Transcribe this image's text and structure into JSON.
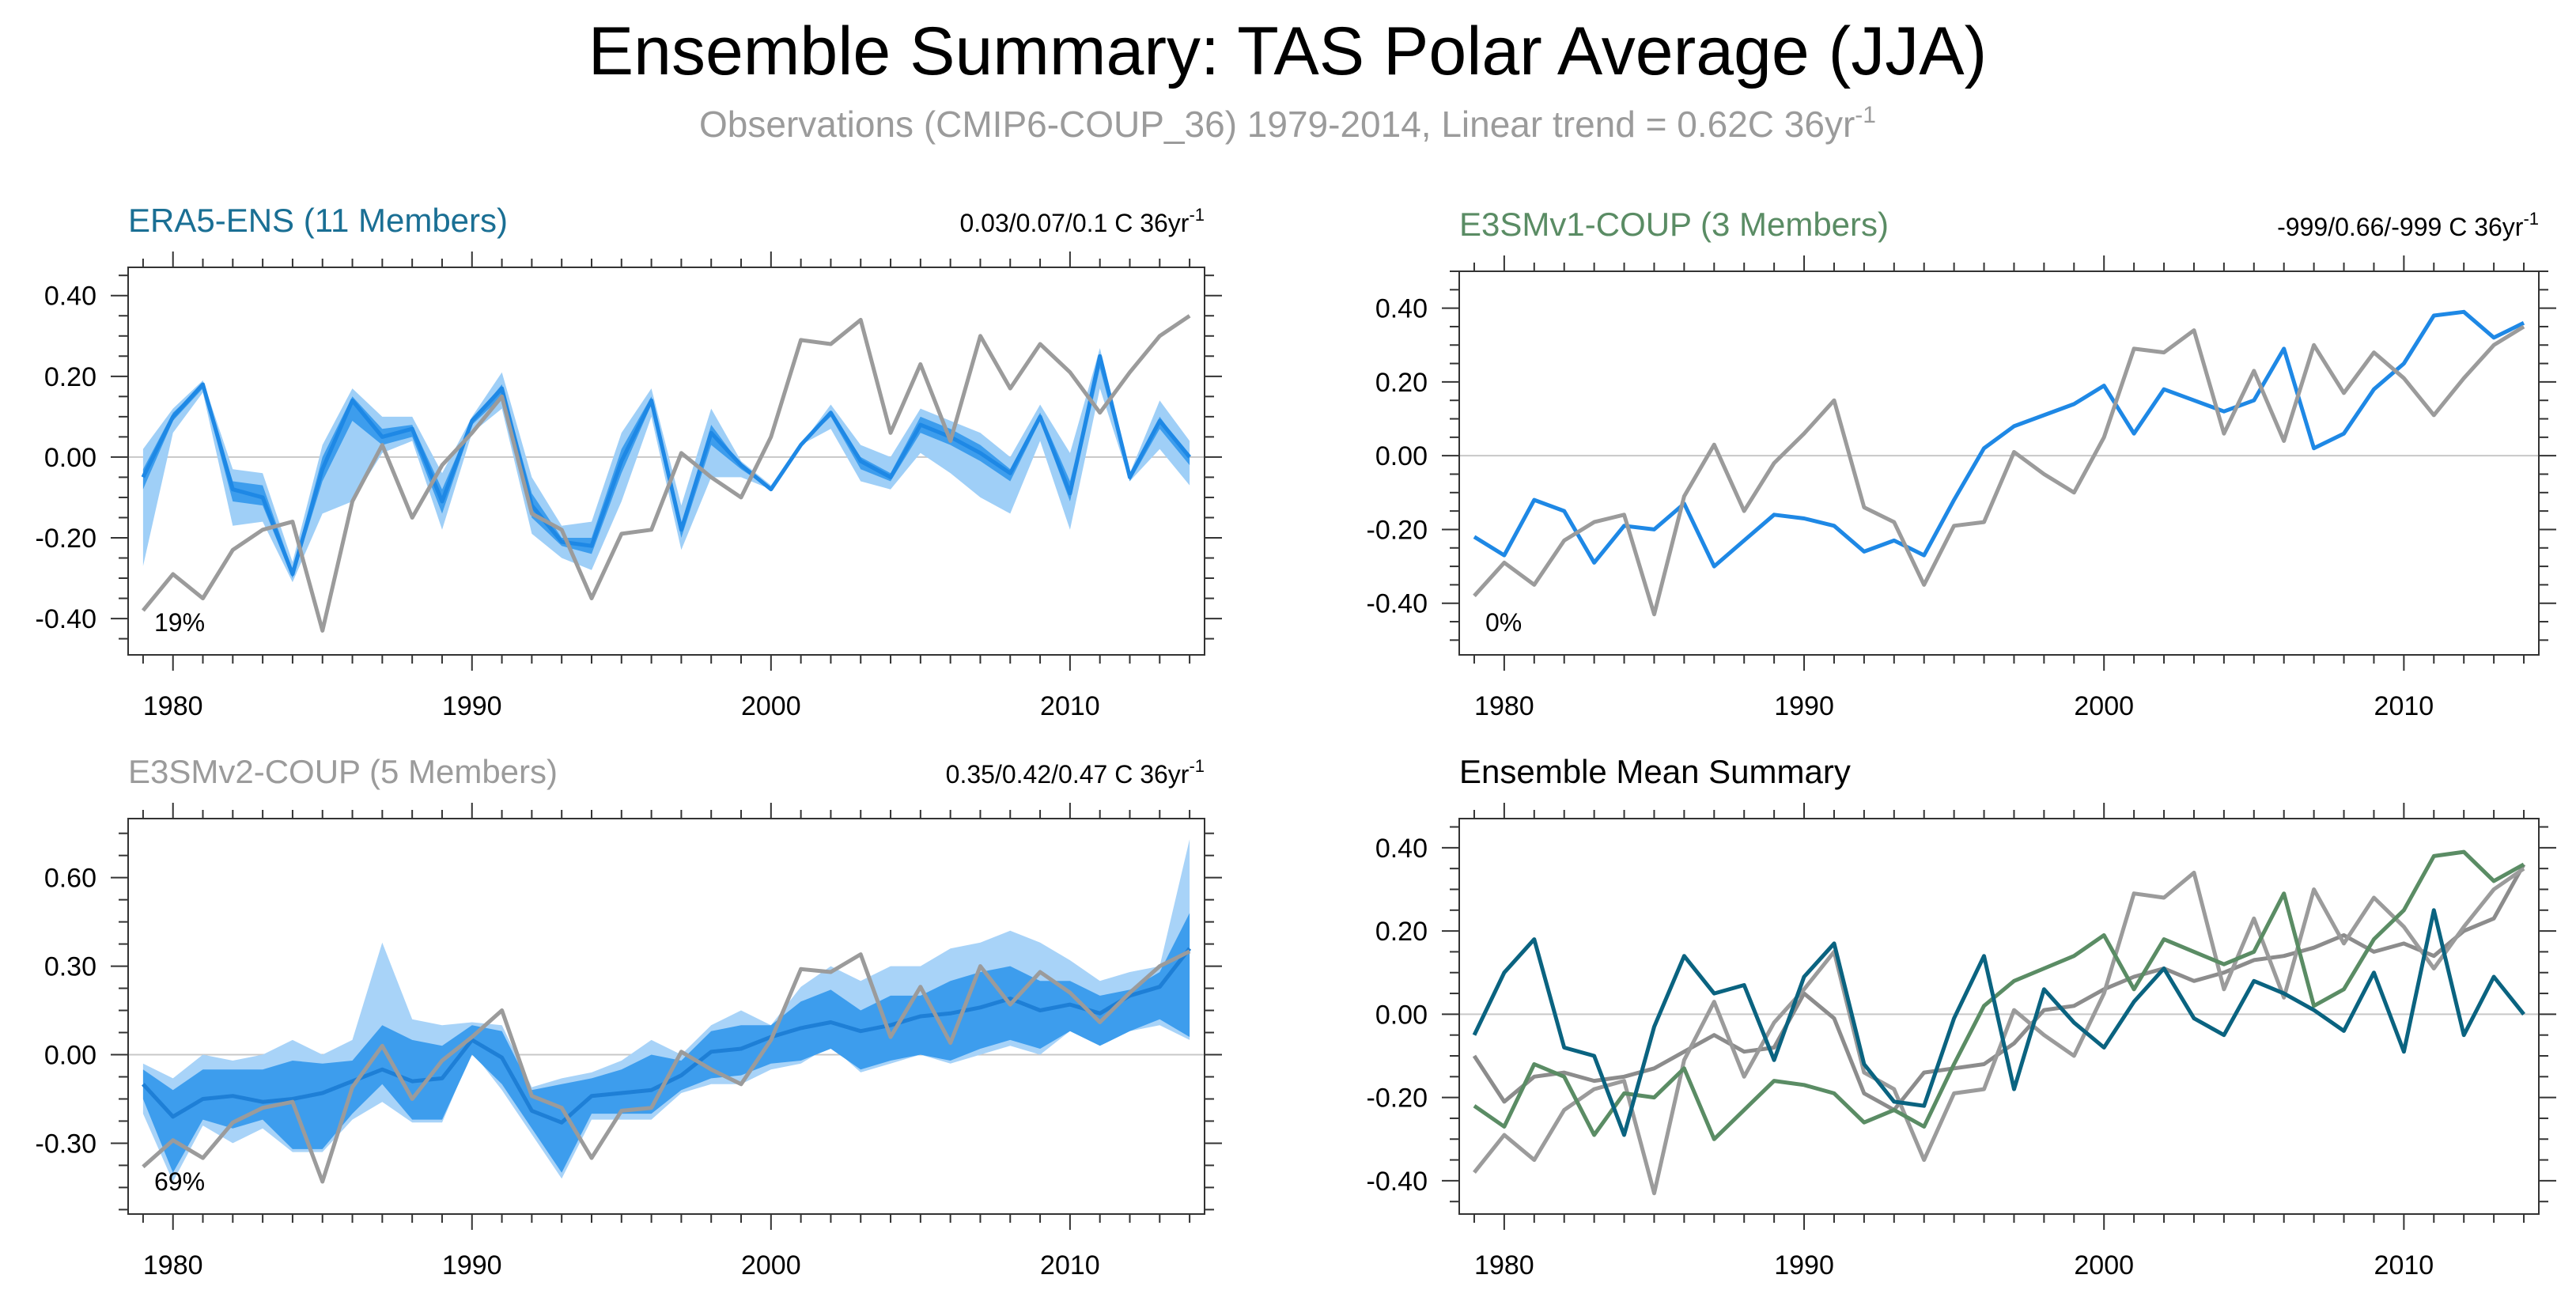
{
  "title": "Ensemble Summary: TAS Polar Average (JJA)",
  "subtitle": "Observations (CMIP6-COUP_36) 1979-2014, Linear trend = 0.62C 36yr",
  "subtitle_sup": "-1",
  "colors": {
    "obs": "#9b9b9b",
    "era5_band_outer": "#9fcff7",
    "era5_band_inner": "#3d9ded",
    "era5_line": "#1e88e5",
    "e3smv1": "#5a8c64",
    "e3smv2_band_outer": "#a8d3f8",
    "e3smv2_band_inner": "#3d9ded",
    "e3smv2_line": "#1e7fd6",
    "mean_era5": "#0a6380",
    "mean_e3smv2": "#8c8c8c"
  },
  "chart_data": [
    {
      "type": "line",
      "panel": "era5",
      "title": "ERA5-ENS (11 Members)",
      "title_color": "#1a6f94",
      "trend_label": "0.03/0.07/0.1 C 36yr",
      "trend_sup": "-1",
      "percent_label": "19%",
      "x": [
        1979,
        1980,
        1981,
        1982,
        1983,
        1984,
        1985,
        1986,
        1987,
        1988,
        1989,
        1990,
        1991,
        1992,
        1993,
        1994,
        1995,
        1996,
        1997,
        1998,
        1999,
        2000,
        2001,
        2002,
        2003,
        2004,
        2005,
        2006,
        2007,
        2008,
        2009,
        2010,
        2011,
        2012,
        2013,
        2014
      ],
      "xticks": [
        1980,
        1990,
        2000,
        2010
      ],
      "yticks": [
        -0.4,
        -0.2,
        0.0,
        0.2,
        0.4
      ],
      "ylim": [
        -0.49,
        0.47
      ],
      "series": [
        {
          "role": "band_outer",
          "low": [
            -0.27,
            0.06,
            0.16,
            -0.17,
            -0.16,
            -0.31,
            -0.14,
            -0.11,
            0.01,
            0.04,
            -0.18,
            0.06,
            0.12,
            -0.19,
            -0.25,
            -0.28,
            -0.11,
            0.1,
            -0.23,
            -0.05,
            -0.05,
            -0.08,
            0.03,
            0.07,
            -0.06,
            -0.08,
            0.01,
            -0.04,
            -0.1,
            -0.14,
            0.04,
            -0.18,
            0.17,
            -0.06,
            0.02,
            -0.07
          ],
          "high": [
            0.02,
            0.12,
            0.19,
            -0.03,
            -0.04,
            -0.26,
            0.03,
            0.17,
            0.1,
            0.1,
            -0.04,
            0.1,
            0.21,
            -0.05,
            -0.17,
            -0.16,
            0.06,
            0.17,
            -0.12,
            0.12,
            -0.01,
            -0.07,
            0.03,
            0.13,
            0.03,
            0.0,
            0.12,
            0.09,
            0.06,
            0.0,
            0.13,
            0.01,
            0.27,
            -0.04,
            0.14,
            0.04
          ]
        },
        {
          "role": "band_inner",
          "low": [
            -0.08,
            0.09,
            0.17,
            -0.11,
            -0.12,
            -0.3,
            -0.06,
            0.09,
            0.03,
            0.05,
            -0.14,
            0.08,
            0.15,
            -0.15,
            -0.22,
            -0.24,
            -0.04,
            0.13,
            -0.2,
            0.03,
            -0.03,
            -0.08,
            0.03,
            0.1,
            -0.03,
            -0.06,
            0.06,
            0.03,
            -0.01,
            -0.06,
            0.09,
            -0.11,
            0.22,
            -0.06,
            0.07,
            -0.02
          ],
          "high": [
            -0.03,
            0.11,
            0.18,
            -0.06,
            -0.07,
            -0.28,
            0.0,
            0.15,
            0.07,
            0.08,
            -0.08,
            0.09,
            0.18,
            -0.09,
            -0.2,
            -0.2,
            0.02,
            0.15,
            -0.17,
            0.08,
            -0.02,
            -0.08,
            0.03,
            0.11,
            0.0,
            -0.04,
            0.1,
            0.07,
            0.03,
            -0.03,
            0.11,
            -0.06,
            0.25,
            -0.05,
            0.1,
            0.0
          ]
        },
        {
          "role": "mean",
          "values": [
            -0.05,
            0.1,
            0.18,
            -0.08,
            -0.1,
            -0.29,
            -0.03,
            0.14,
            0.05,
            0.07,
            -0.11,
            0.09,
            0.17,
            -0.12,
            -0.21,
            -0.22,
            -0.01,
            0.14,
            -0.18,
            0.06,
            -0.02,
            -0.08,
            0.03,
            0.11,
            -0.01,
            -0.05,
            0.08,
            0.05,
            0.01,
            -0.04,
            0.1,
            -0.09,
            0.25,
            -0.05,
            0.09,
            0.0
          ]
        },
        {
          "role": "obs",
          "values": [
            -0.38,
            -0.29,
            -0.35,
            -0.23,
            -0.18,
            -0.16,
            -0.43,
            -0.11,
            0.03,
            -0.15,
            -0.02,
            0.06,
            0.15,
            -0.14,
            -0.18,
            -0.35,
            -0.19,
            -0.18,
            0.01,
            -0.05,
            -0.1,
            0.05,
            0.29,
            0.28,
            0.34,
            0.06,
            0.23,
            0.04,
            0.3,
            0.17,
            0.28,
            0.21,
            0.11,
            0.21,
            0.3,
            0.35
          ]
        }
      ]
    },
    {
      "type": "line",
      "panel": "e3smv1",
      "title": "E3SMv1-COUP (3 Members)",
      "title_color": "#5a8c64",
      "trend_label": "-999/0.66/-999 C 36yr",
      "trend_sup": "-1",
      "percent_label": "0%",
      "x": [
        1979,
        1980,
        1981,
        1982,
        1983,
        1984,
        1985,
        1986,
        1987,
        1988,
        1989,
        1990,
        1991,
        1992,
        1993,
        1994,
        1995,
        1996,
        1997,
        1998,
        1999,
        2000,
        2001,
        2002,
        2003,
        2004,
        2005,
        2006,
        2007,
        2008,
        2009,
        2010,
        2011,
        2012,
        2013,
        2014
      ],
      "xticks": [
        1980,
        1990,
        2000,
        2010
      ],
      "yticks": [
        -0.4,
        -0.2,
        0.0,
        0.2,
        0.4
      ],
      "ylim": [
        -0.54,
        0.5
      ],
      "series": [
        {
          "role": "mean",
          "values": [
            -0.22,
            -0.27,
            -0.12,
            -0.15,
            -0.29,
            -0.19,
            -0.2,
            -0.13,
            -0.3,
            -0.23,
            -0.16,
            -0.17,
            -0.19,
            -0.26,
            -0.23,
            -0.27,
            -0.12,
            0.02,
            0.08,
            0.11,
            0.14,
            0.19,
            0.06,
            0.18,
            0.15,
            0.12,
            0.15,
            0.29,
            0.02,
            0.06,
            0.18,
            0.25,
            0.38,
            0.39,
            0.32,
            0.36
          ]
        },
        {
          "role": "obs",
          "values": [
            -0.38,
            -0.29,
            -0.35,
            -0.23,
            -0.18,
            -0.16,
            -0.43,
            -0.11,
            0.03,
            -0.15,
            -0.02,
            0.06,
            0.15,
            -0.14,
            -0.18,
            -0.35,
            -0.19,
            -0.18,
            0.01,
            -0.05,
            -0.1,
            0.05,
            0.29,
            0.28,
            0.34,
            0.06,
            0.23,
            0.04,
            0.3,
            0.17,
            0.28,
            0.21,
            0.11,
            0.21,
            0.3,
            0.35
          ]
        }
      ]
    },
    {
      "type": "line",
      "panel": "e3smv2",
      "title": "E3SMv2-COUP (5 Members)",
      "title_color": "#9b9b9b",
      "trend_label": "0.35/0.42/0.47 C 36yr",
      "trend_sup": "-1",
      "percent_label": "69%",
      "x": [
        1979,
        1980,
        1981,
        1982,
        1983,
        1984,
        1985,
        1986,
        1987,
        1988,
        1989,
        1990,
        1991,
        1992,
        1993,
        1994,
        1995,
        1996,
        1997,
        1998,
        1999,
        2000,
        2001,
        2002,
        2003,
        2004,
        2005,
        2006,
        2007,
        2008,
        2009,
        2010,
        2011,
        2012,
        2013,
        2014
      ],
      "xticks": [
        1980,
        1990,
        2000,
        2010
      ],
      "yticks": [
        -0.3,
        0.0,
        0.3,
        0.6
      ],
      "ylim": [
        -0.54,
        0.8
      ],
      "series": [
        {
          "role": "band_outer",
          "low": [
            -0.2,
            -0.43,
            -0.24,
            -0.3,
            -0.25,
            -0.33,
            -0.33,
            -0.22,
            -0.16,
            -0.23,
            -0.23,
            0.01,
            -0.12,
            -0.27,
            -0.42,
            -0.22,
            -0.22,
            -0.22,
            -0.13,
            -0.1,
            -0.1,
            -0.05,
            -0.03,
            0.03,
            -0.06,
            -0.03,
            0.0,
            -0.03,
            0.0,
            0.03,
            0.0,
            0.08,
            0.03,
            0.08,
            0.1,
            0.05
          ],
          "high": [
            -0.03,
            -0.08,
            0.0,
            -0.02,
            0.0,
            0.05,
            0.0,
            0.05,
            0.38,
            0.12,
            0.1,
            0.11,
            0.1,
            -0.11,
            -0.08,
            -0.06,
            -0.02,
            0.05,
            0.0,
            0.1,
            0.15,
            0.1,
            0.23,
            0.3,
            0.25,
            0.3,
            0.3,
            0.36,
            0.38,
            0.42,
            0.38,
            0.32,
            0.25,
            0.28,
            0.3,
            0.73
          ]
        },
        {
          "role": "band_inner",
          "low": [
            -0.15,
            -0.4,
            -0.22,
            -0.25,
            -0.22,
            -0.32,
            -0.32,
            -0.2,
            -0.1,
            -0.22,
            -0.22,
            0.0,
            -0.1,
            -0.25,
            -0.4,
            -0.2,
            -0.2,
            -0.2,
            -0.12,
            -0.08,
            -0.07,
            -0.03,
            -0.02,
            0.02,
            -0.05,
            -0.02,
            0.0,
            -0.02,
            0.02,
            0.05,
            0.02,
            0.08,
            0.03,
            0.08,
            0.12,
            0.06
          ],
          "high": [
            -0.05,
            -0.12,
            -0.05,
            -0.05,
            -0.05,
            -0.02,
            -0.03,
            -0.02,
            0.1,
            0.05,
            0.03,
            0.1,
            0.08,
            -0.12,
            -0.1,
            -0.08,
            -0.05,
            0.0,
            -0.02,
            0.08,
            0.1,
            0.1,
            0.18,
            0.22,
            0.15,
            0.2,
            0.2,
            0.25,
            0.28,
            0.3,
            0.25,
            0.25,
            0.2,
            0.22,
            0.28,
            0.48
          ]
        },
        {
          "role": "mean",
          "values": [
            -0.1,
            -0.21,
            -0.15,
            -0.14,
            -0.16,
            -0.15,
            -0.13,
            -0.09,
            -0.05,
            -0.09,
            -0.08,
            0.05,
            -0.01,
            -0.19,
            -0.23,
            -0.14,
            -0.13,
            -0.12,
            -0.07,
            0.01,
            0.02,
            0.06,
            0.09,
            0.11,
            0.08,
            0.1,
            0.13,
            0.14,
            0.16,
            0.19,
            0.15,
            0.17,
            0.14,
            0.2,
            0.23,
            0.36
          ]
        },
        {
          "role": "obs",
          "values": [
            -0.38,
            -0.29,
            -0.35,
            -0.23,
            -0.18,
            -0.16,
            -0.43,
            -0.11,
            0.03,
            -0.15,
            -0.02,
            0.06,
            0.15,
            -0.14,
            -0.18,
            -0.35,
            -0.19,
            -0.18,
            0.01,
            -0.05,
            -0.1,
            0.05,
            0.29,
            0.28,
            0.34,
            0.06,
            0.23,
            0.04,
            0.3,
            0.17,
            0.28,
            0.21,
            0.11,
            0.21,
            0.3,
            0.35
          ]
        }
      ]
    },
    {
      "type": "line",
      "panel": "mean",
      "title": "Ensemble Mean Summary",
      "title_color": "#000000",
      "x": [
        1979,
        1980,
        1981,
        1982,
        1983,
        1984,
        1985,
        1986,
        1987,
        1988,
        1989,
        1990,
        1991,
        1992,
        1993,
        1994,
        1995,
        1996,
        1997,
        1998,
        1999,
        2000,
        2001,
        2002,
        2003,
        2004,
        2005,
        2006,
        2007,
        2008,
        2009,
        2010,
        2011,
        2012,
        2013,
        2014
      ],
      "xticks": [
        1980,
        1990,
        2000,
        2010
      ],
      "yticks": [
        -0.4,
        -0.2,
        0.0,
        0.2,
        0.4
      ],
      "ylim": [
        -0.48,
        0.47
      ],
      "series": [
        {
          "role": "mean_e3smv2",
          "values": [
            -0.1,
            -0.21,
            -0.15,
            -0.14,
            -0.16,
            -0.15,
            -0.13,
            -0.09,
            -0.05,
            -0.09,
            -0.08,
            0.05,
            -0.01,
            -0.19,
            -0.23,
            -0.14,
            -0.13,
            -0.12,
            -0.07,
            0.01,
            0.02,
            0.06,
            0.09,
            0.11,
            0.08,
            0.1,
            0.13,
            0.14,
            0.16,
            0.19,
            0.15,
            0.17,
            0.14,
            0.2,
            0.23,
            0.36
          ]
        },
        {
          "role": "obs",
          "values": [
            -0.38,
            -0.29,
            -0.35,
            -0.23,
            -0.18,
            -0.16,
            -0.43,
            -0.11,
            0.03,
            -0.15,
            -0.02,
            0.06,
            0.15,
            -0.14,
            -0.18,
            -0.35,
            -0.19,
            -0.18,
            0.01,
            -0.05,
            -0.1,
            0.05,
            0.29,
            0.28,
            0.34,
            0.06,
            0.23,
            0.04,
            0.3,
            0.17,
            0.28,
            0.21,
            0.11,
            0.21,
            0.3,
            0.35
          ]
        },
        {
          "role": "mean_e3smv1",
          "values": [
            -0.22,
            -0.27,
            -0.12,
            -0.15,
            -0.29,
            -0.19,
            -0.2,
            -0.13,
            -0.3,
            -0.23,
            -0.16,
            -0.17,
            -0.19,
            -0.26,
            -0.23,
            -0.27,
            -0.12,
            0.02,
            0.08,
            0.11,
            0.14,
            0.19,
            0.06,
            0.18,
            0.15,
            0.12,
            0.15,
            0.29,
            0.02,
            0.06,
            0.18,
            0.25,
            0.38,
            0.39,
            0.32,
            0.36
          ]
        },
        {
          "role": "mean_era5",
          "values": [
            -0.05,
            0.1,
            0.18,
            -0.08,
            -0.1,
            -0.29,
            -0.03,
            0.14,
            0.05,
            0.07,
            -0.11,
            0.09,
            0.17,
            -0.12,
            -0.21,
            -0.22,
            -0.01,
            0.14,
            -0.18,
            0.06,
            -0.02,
            -0.08,
            0.03,
            0.11,
            -0.01,
            -0.05,
            0.08,
            0.05,
            0.01,
            -0.04,
            0.1,
            -0.09,
            0.25,
            -0.05,
            0.09,
            0.0
          ]
        }
      ]
    }
  ]
}
